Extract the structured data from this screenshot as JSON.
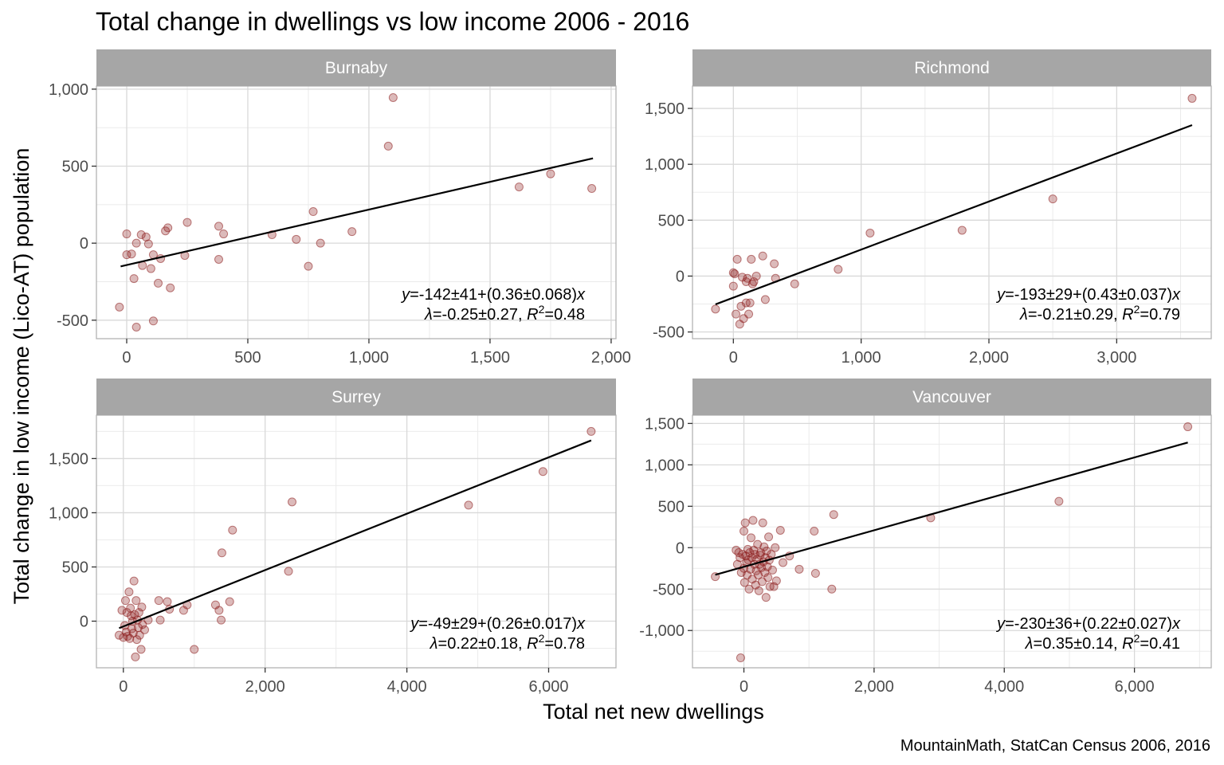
{
  "chart_data": {
    "type": "scatter",
    "title": "Total change in dwellings vs low income 2006 - 2016",
    "xlabel": "Total net new dwellings",
    "ylabel": "Total change in low income (Lico-AT) population",
    "caption": "MountainMath, StatCan Census 2006, 2016",
    "point_color": "#8b1a1a",
    "line_color": "#000000",
    "strip_color": "#a6a6a6",
    "grid": true,
    "panels": [
      {
        "name": "Burnaby",
        "xlim": [
          -125,
          2020
        ],
        "ylim": [
          -620,
          1020
        ],
        "x_ticks": [
          0,
          500,
          1000,
          1500,
          2000
        ],
        "x_tick_labels": [
          "0",
          "500",
          "1,000",
          "1,500",
          "2,000"
        ],
        "y_ticks": [
          -500,
          0,
          500,
          1000
        ],
        "y_tick_labels": [
          "-500",
          "0",
          "500",
          "1,000"
        ],
        "fit": {
          "intercept": -142,
          "slope": 0.36,
          "x_range": [
            -25,
            1925
          ]
        },
        "annotation": {
          "eq_prefix": "=-142±41+(0.36±0.068)",
          "lambda_text": "=-0.25±0.27, ",
          "r2_value": "=0.48"
        },
        "points": [
          [
            -30,
            -415
          ],
          [
            0,
            60
          ],
          [
            0,
            -75
          ],
          [
            20,
            -70
          ],
          [
            30,
            -230
          ],
          [
            40,
            -545
          ],
          [
            40,
            0
          ],
          [
            60,
            55
          ],
          [
            65,
            -145
          ],
          [
            80,
            40
          ],
          [
            90,
            -5
          ],
          [
            100,
            -165
          ],
          [
            110,
            -75
          ],
          [
            110,
            -505
          ],
          [
            130,
            -260
          ],
          [
            140,
            -100
          ],
          [
            160,
            80
          ],
          [
            170,
            100
          ],
          [
            180,
            -290
          ],
          [
            240,
            -80
          ],
          [
            250,
            135
          ],
          [
            380,
            110
          ],
          [
            380,
            -105
          ],
          [
            400,
            60
          ],
          [
            600,
            55
          ],
          [
            700,
            25
          ],
          [
            750,
            -150
          ],
          [
            770,
            205
          ],
          [
            800,
            0
          ],
          [
            930,
            75
          ],
          [
            1080,
            630
          ],
          [
            1100,
            945
          ],
          [
            1620,
            365
          ],
          [
            1750,
            450
          ],
          [
            1920,
            355
          ]
        ]
      },
      {
        "name": "Richmond",
        "xlim": [
          -320,
          3740
        ],
        "ylim": [
          -560,
          1700
        ],
        "x_ticks": [
          0,
          1000,
          2000,
          3000
        ],
        "x_tick_labels": [
          "0",
          "1,000",
          "2,000",
          "3,000"
        ],
        "y_ticks": [
          -500,
          0,
          500,
          1000,
          1500
        ],
        "y_tick_labels": [
          "-500",
          "0",
          "500",
          "1,000",
          "1,500"
        ],
        "fit": {
          "intercept": -193,
          "slope": 0.43,
          "x_range": [
            -140,
            3590
          ]
        },
        "annotation": {
          "eq_prefix": "=-193±29+(0.43±0.037)",
          "lambda_text": "=-0.21±0.29, ",
          "r2_value": "=0.79"
        },
        "points": [
          [
            -140,
            -295
          ],
          [
            0,
            -90
          ],
          [
            0,
            30
          ],
          [
            10,
            20
          ],
          [
            20,
            -340
          ],
          [
            30,
            150
          ],
          [
            50,
            -430
          ],
          [
            60,
            -270
          ],
          [
            70,
            -10
          ],
          [
            80,
            -380
          ],
          [
            100,
            -50
          ],
          [
            100,
            -240
          ],
          [
            110,
            -20
          ],
          [
            120,
            -340
          ],
          [
            130,
            -240
          ],
          [
            140,
            150
          ],
          [
            150,
            -70
          ],
          [
            160,
            -50
          ],
          [
            180,
            0
          ],
          [
            230,
            180
          ],
          [
            250,
            -210
          ],
          [
            320,
            110
          ],
          [
            330,
            -20
          ],
          [
            480,
            -70
          ],
          [
            820,
            60
          ],
          [
            1070,
            385
          ],
          [
            1790,
            410
          ],
          [
            2500,
            690
          ],
          [
            3590,
            1590
          ]
        ]
      },
      {
        "name": "Surrey",
        "xlim": [
          -380,
          6950
        ],
        "ylim": [
          -430,
          1900
        ],
        "x_ticks": [
          0,
          2000,
          4000,
          6000
        ],
        "x_tick_labels": [
          "0",
          "2,000",
          "4,000",
          "6,000"
        ],
        "y_ticks": [
          0,
          500,
          1000,
          1500
        ],
        "y_tick_labels": [
          "0",
          "500",
          "1,000",
          "1,500"
        ],
        "fit": {
          "intercept": -49,
          "slope": 0.26,
          "x_range": [
            -60,
            6600
          ]
        },
        "annotation": {
          "eq_prefix": "=-49±29+(0.26±0.017)",
          "lambda_text": "=0.22±0.18, ",
          "r2_value": "=0.78"
        },
        "points": [
          [
            -60,
            -130
          ],
          [
            -20,
            100
          ],
          [
            0,
            -150
          ],
          [
            20,
            -40
          ],
          [
            30,
            190
          ],
          [
            40,
            -100
          ],
          [
            50,
            80
          ],
          [
            60,
            -140
          ],
          [
            80,
            270
          ],
          [
            90,
            -160
          ],
          [
            100,
            120
          ],
          [
            110,
            50
          ],
          [
            120,
            -70
          ],
          [
            130,
            0
          ],
          [
            140,
            -110
          ],
          [
            150,
            370
          ],
          [
            160,
            60
          ],
          [
            170,
            -330
          ],
          [
            180,
            190
          ],
          [
            190,
            -170
          ],
          [
            200,
            10
          ],
          [
            210,
            -60
          ],
          [
            220,
            80
          ],
          [
            230,
            -130
          ],
          [
            250,
            -260
          ],
          [
            260,
            130
          ],
          [
            270,
            -30
          ],
          [
            300,
            -80
          ],
          [
            350,
            10
          ],
          [
            500,
            190
          ],
          [
            520,
            10
          ],
          [
            620,
            180
          ],
          [
            650,
            110
          ],
          [
            850,
            100
          ],
          [
            900,
            150
          ],
          [
            1000,
            -260
          ],
          [
            1300,
            150
          ],
          [
            1350,
            100
          ],
          [
            1380,
            10
          ],
          [
            1390,
            630
          ],
          [
            1500,
            180
          ],
          [
            1540,
            840
          ],
          [
            2330,
            460
          ],
          [
            2380,
            1100
          ],
          [
            4870,
            1070
          ],
          [
            5920,
            1380
          ],
          [
            6600,
            1750
          ]
        ]
      },
      {
        "name": "Vancouver",
        "xlim": [
          -790,
          7180
        ],
        "ylim": [
          -1450,
          1600
        ],
        "x_ticks": [
          0,
          2000,
          4000,
          6000
        ],
        "x_tick_labels": [
          "0",
          "2,000",
          "4,000",
          "6,000"
        ],
        "y_ticks": [
          -1000,
          -500,
          0,
          500,
          1000,
          1500
        ],
        "y_tick_labels": [
          "-1,000",
          "-500",
          "0",
          "500",
          "1,000",
          "1,500"
        ],
        "fit": {
          "intercept": -230,
          "slope": 0.22,
          "x_range": [
            -440,
            6820
          ]
        },
        "annotation": {
          "eq_prefix": "=-230±36+(0.22±0.027)",
          "lambda_text": "=0.35±0.14, ",
          "r2_value": "=0.41"
        },
        "points": [
          [
            -440,
            -350
          ],
          [
            -50,
            -1330
          ],
          [
            -120,
            -30
          ],
          [
            -100,
            -200
          ],
          [
            -80,
            -60
          ],
          [
            -60,
            -120
          ],
          [
            -40,
            -300
          ],
          [
            -20,
            -80
          ],
          [
            0,
            200
          ],
          [
            0,
            -250
          ],
          [
            10,
            -420
          ],
          [
            20,
            300
          ],
          [
            30,
            -100
          ],
          [
            40,
            -180
          ],
          [
            50,
            -330
          ],
          [
            60,
            -20
          ],
          [
            70,
            -150
          ],
          [
            80,
            -500
          ],
          [
            90,
            -60
          ],
          [
            100,
            -260
          ],
          [
            110,
            120
          ],
          [
            120,
            -120
          ],
          [
            130,
            -380
          ],
          [
            140,
            330
          ],
          [
            150,
            -30
          ],
          [
            160,
            -200
          ],
          [
            170,
            -80
          ],
          [
            180,
            -450
          ],
          [
            190,
            -280
          ],
          [
            200,
            -140
          ],
          [
            210,
            40
          ],
          [
            220,
            -330
          ],
          [
            230,
            -520
          ],
          [
            240,
            -200
          ],
          [
            250,
            -90
          ],
          [
            260,
            -60
          ],
          [
            270,
            -240
          ],
          [
            280,
            -410
          ],
          [
            290,
            300
          ],
          [
            300,
            -170
          ],
          [
            310,
            10
          ],
          [
            320,
            -300
          ],
          [
            330,
            -120
          ],
          [
            340,
            -600
          ],
          [
            350,
            -40
          ],
          [
            360,
            -230
          ],
          [
            370,
            -360
          ],
          [
            380,
            130
          ],
          [
            390,
            -150
          ],
          [
            400,
            -470
          ],
          [
            420,
            -80
          ],
          [
            440,
            -270
          ],
          [
            460,
            -470
          ],
          [
            480,
            0
          ],
          [
            500,
            -400
          ],
          [
            560,
            210
          ],
          [
            600,
            -180
          ],
          [
            700,
            -100
          ],
          [
            850,
            -260
          ],
          [
            1080,
            200
          ],
          [
            1100,
            -310
          ],
          [
            1350,
            -500
          ],
          [
            1380,
            400
          ],
          [
            2870,
            360
          ],
          [
            4840,
            560
          ],
          [
            6820,
            1460
          ]
        ]
      }
    ]
  }
}
